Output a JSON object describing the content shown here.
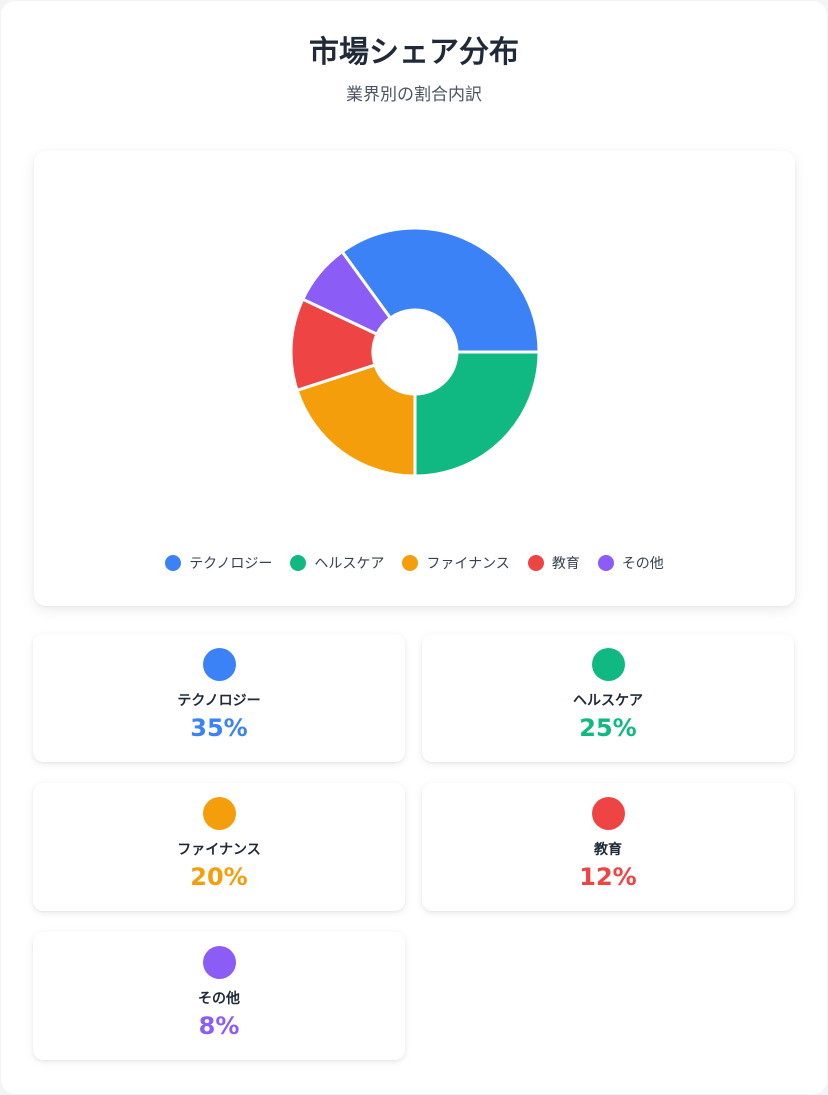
{
  "header": {
    "title": "市場シェア分布",
    "subtitle": "業界別の割合内訳"
  },
  "chart_data": {
    "type": "pie",
    "style": "donut",
    "title": "市場シェア分布",
    "subtitle": "業界別の割合内訳",
    "categories": [
      "テクノロジー",
      "ヘルスケア",
      "ファイナンス",
      "教育",
      "その他"
    ],
    "values": [
      35,
      25,
      20,
      12,
      8
    ],
    "unit": "%",
    "colors": [
      "#3b82f6",
      "#10b981",
      "#f59e0b",
      "#ef4444",
      "#8b5cf6"
    ],
    "legend_position": "bottom"
  },
  "stats": [
    {
      "label": "テクノロジー",
      "value": "35%",
      "color": "#3b82f6"
    },
    {
      "label": "ヘルスケア",
      "value": "25%",
      "color": "#10b981"
    },
    {
      "label": "ファイナンス",
      "value": "20%",
      "color": "#f59e0b"
    },
    {
      "label": "教育",
      "value": "12%",
      "color": "#ef4444"
    },
    {
      "label": "その他",
      "value": "8%",
      "color": "#8b5cf6"
    }
  ]
}
